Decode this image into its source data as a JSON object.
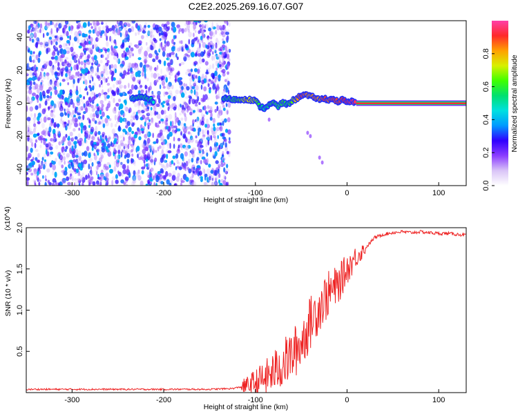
{
  "title": "C2E2.2025.269.16.07.G07",
  "chart_data": [
    {
      "type": "heatmap",
      "xlabel": "Height of straight line (km)",
      "ylabel": "Frequency (Hz)",
      "xlim": [
        -350,
        130
      ],
      "ylim": [
        -50,
        50
      ],
      "xticks": [
        -300,
        -200,
        -100,
        0,
        100
      ],
      "yticks": [
        -40,
        -20,
        0,
        20,
        40
      ],
      "colorbar": {
        "label": "Normalized spectral amplitude",
        "range": [
          0.0,
          1.0
        ],
        "ticks": [
          0.0,
          0.2,
          0.4,
          0.6,
          0.8
        ],
        "tick_labels": [
          "0.0",
          "0.2",
          "0.4",
          "0.6",
          "0.8"
        ],
        "colormap": [
          "#ffffff",
          "#d9c4f7",
          "#8b3dff",
          "#3000ff",
          "#0099ff",
          "#00e0e0",
          "#00e070",
          "#40ff00",
          "#d8f000",
          "#ffa000",
          "#ff2a2a",
          "#ff3fa8"
        ]
      },
      "noise_region_x": [
        -350,
        -128
      ],
      "signal_track": {
        "x": [
          -235,
          -225,
          -215,
          -210,
          -135,
          -120,
          -110,
          -100,
          -95,
          -90,
          -85,
          -80,
          -75,
          -70,
          -65,
          -60,
          -55,
          -50,
          -45,
          -40,
          -35,
          -30,
          -25,
          -20,
          -15,
          -10,
          -5,
          0,
          5,
          10,
          130
        ],
        "frequency": [
          3,
          3.5,
          2.5,
          0.5,
          3,
          2,
          2.5,
          1.5,
          -2,
          -3,
          -1,
          0,
          -2,
          0.5,
          -1,
          1.5,
          2.5,
          5,
          5,
          4,
          3.5,
          2,
          3,
          2,
          2.5,
          1,
          2,
          0.5,
          1,
          0,
          0
        ],
        "amplitude": [
          0.5,
          0.55,
          0.55,
          0.45,
          0.55,
          0.6,
          0.75,
          0.7,
          0.55,
          0.5,
          0.55,
          0.6,
          0.55,
          0.6,
          0.55,
          0.65,
          0.8,
          0.9,
          0.85,
          0.8,
          0.85,
          0.8,
          0.9,
          0.85,
          0.9,
          0.88,
          0.9,
          0.92,
          0.95,
          0.95,
          0.95
        ]
      },
      "faint_features": {
        "x": [
          -85,
          -43,
          -40,
          -30,
          -27
        ],
        "frequency": [
          -10,
          -18,
          -20,
          -33,
          -36
        ]
      }
    },
    {
      "type": "line",
      "xlabel": "Height of straight line (km)",
      "ylabel": "SNR (10 * v/v)",
      "y_scale_note": "(x10^4)",
      "xlim": [
        -350,
        130
      ],
      "ylim": [
        0,
        2.0
      ],
      "xticks": [
        -300,
        -200,
        -100,
        0,
        100
      ],
      "yticks": [
        0.5,
        1.0,
        1.5,
        2.0
      ],
      "ytick_labels": [
        "0.5",
        "1.0",
        "1.5",
        "2.0"
      ],
      "color": "#ee2222",
      "series": [
        {
          "x": [
            -350,
            -300,
            -250,
            -200,
            -150,
            -125,
            -110,
            -100,
            -90,
            -80,
            -70,
            -60,
            -50,
            -40,
            -30,
            -20,
            -10,
            0,
            10,
            20,
            30,
            40,
            50,
            60,
            70,
            80,
            90,
            100,
            110,
            120,
            130
          ],
          "values": [
            0.04,
            0.04,
            0.04,
            0.04,
            0.04,
            0.05,
            0.08,
            0.12,
            0.17,
            0.25,
            0.35,
            0.45,
            0.6,
            0.85,
            1.05,
            1.2,
            1.3,
            1.5,
            1.65,
            1.75,
            1.88,
            1.92,
            1.94,
            1.95,
            1.94,
            1.95,
            1.94,
            1.93,
            1.93,
            1.92,
            1.91
          ]
        }
      ]
    }
  ]
}
